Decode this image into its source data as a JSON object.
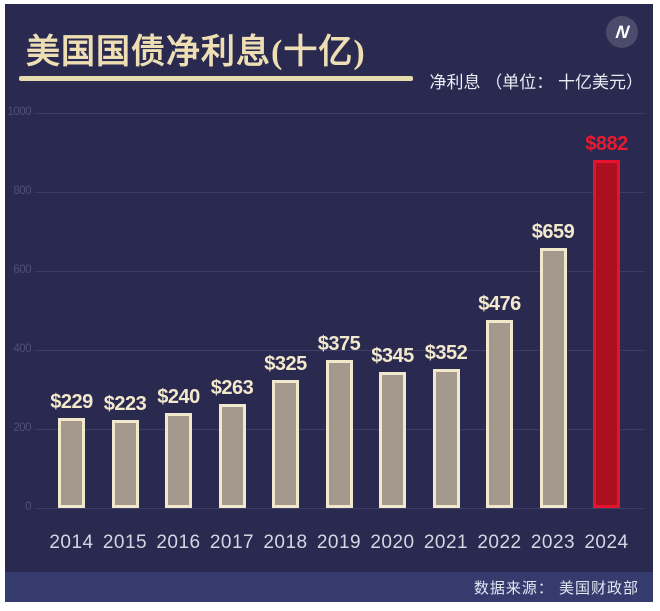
{
  "header": {
    "title": "美国国债净利息(十亿)",
    "legend": "净利息 （单位： 十亿美元）",
    "logo_letter": "N"
  },
  "footer": {
    "source": "数据来源： 美国财政部"
  },
  "colors": {
    "card_background": "#2a2950",
    "title_cream": "#eddfb3",
    "bar_fill": "#a39a8d",
    "bar_border": "#f2e9cd",
    "highlight_fill": "#ab0f20",
    "highlight_border": "#e5132b",
    "highlight_label": "#ea1a2e",
    "footer_background": "#353c6d"
  },
  "chart_data": {
    "type": "bar",
    "title": "美国国债净利息(十亿)",
    "xlabel": "",
    "ylabel": "净利息 （单位： 十亿美元）",
    "categories": [
      "2014",
      "2015",
      "2016",
      "2017",
      "2018",
      "2019",
      "2020",
      "2021",
      "2022",
      "2023",
      "2024"
    ],
    "values": [
      229,
      223,
      240,
      263,
      325,
      375,
      345,
      352,
      476,
      659,
      882
    ],
    "bar_labels": [
      "$229",
      "$223",
      "$240",
      "$263",
      "$325",
      "$375",
      "$345",
      "$352",
      "$476",
      "$659",
      "$882"
    ],
    "yticks": [
      1000,
      800,
      600,
      400,
      200,
      0
    ],
    "ylim": [
      0,
      1000
    ],
    "grid": "horizontal",
    "legend_position": "top-right",
    "highlight_index": 10,
    "highlight_category": "2024"
  }
}
